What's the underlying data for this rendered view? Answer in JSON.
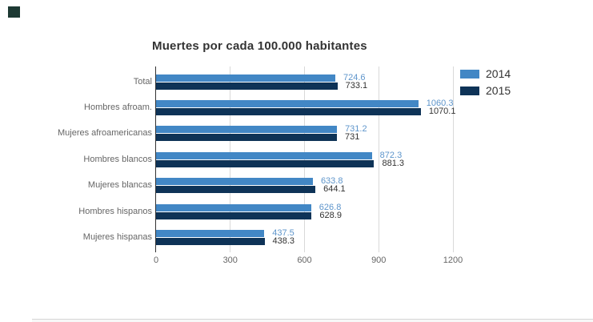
{
  "page": {
    "background": "#ffffff"
  },
  "decor": {
    "corner_square_color": "#1d3933",
    "bottom_divider_color": "#d6d6d6"
  },
  "chart_data": {
    "type": "bar",
    "orientation": "horizontal",
    "title": "Muertes por cada 100.000 habitantes",
    "categories": [
      "Total",
      "Hombres afroam.",
      "Mujeres afroamericanas",
      "Hombres blancos",
      "Mujeres blancas",
      "Hombres hispanos",
      "Mujeres hispanas"
    ],
    "series": [
      {
        "name": "2014",
        "color": "#4287c5",
        "label_color": "#5e95cb",
        "values": [
          724.6,
          1060.3,
          731.2,
          872.3,
          633.8,
          626.8,
          437.5
        ],
        "labels": [
          "724.6",
          "1060.3",
          "731.2",
          "872.3",
          "633.8",
          "626.8",
          "437.5"
        ]
      },
      {
        "name": "2015",
        "color": "#0e3357",
        "label_color": "#333333",
        "values": [
          733.1,
          1070.1,
          731,
          881.3,
          644.1,
          628.9,
          438.3
        ],
        "labels": [
          "733.1",
          "1070.1",
          "731",
          "881.3",
          "644.1",
          "628.9",
          "438.3"
        ]
      }
    ],
    "xlim": [
      0,
      1200
    ],
    "x_ticks": [
      0,
      300,
      600,
      900,
      1200
    ],
    "x_tick_labels": [
      "0",
      "300",
      "600",
      "900",
      "1200"
    ],
    "grid": true,
    "gridline_color": "#d9d9d9",
    "axis_line_color": "#333333",
    "category_label_color": "#666666",
    "tick_label_color": "#666666",
    "legend_position": "top-right"
  }
}
